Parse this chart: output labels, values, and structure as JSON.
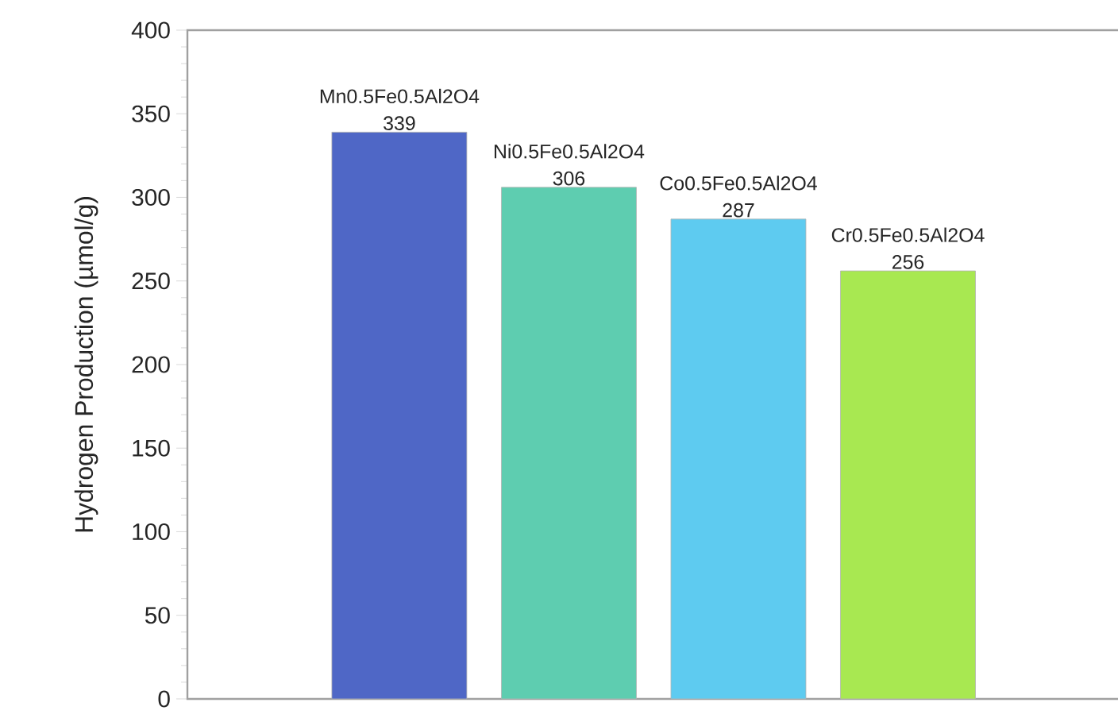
{
  "chart_data": {
    "type": "bar",
    "ylabel": "Hydrogen Production (µmol/g)",
    "categories": [
      "Mn0.5Fe0.5Al2O4",
      "Ni0.5Fe0.5Al2O4",
      "Co0.5Fe0.5Al2O4",
      "Cr0.5Fe0.5Al2O4"
    ],
    "values": [
      339,
      306,
      287,
      256
    ],
    "colors": [
      "#4f67c6",
      "#5ecdb0",
      "#5ecbf0",
      "#a8e851"
    ],
    "ylim": [
      0,
      400
    ],
    "yticks": [
      0,
      50,
      100,
      150,
      200,
      250,
      300,
      350,
      400
    ],
    "data_labels": true
  }
}
